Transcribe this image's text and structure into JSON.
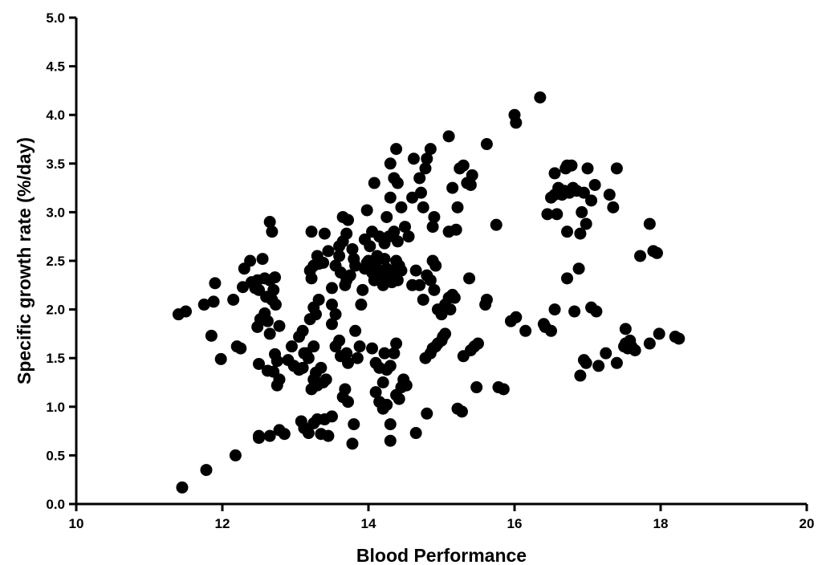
{
  "chart_data": {
    "type": "scatter",
    "title": "",
    "xlabel": "Blood Performance",
    "ylabel": "Specific growth rate (%/day)",
    "xlim": [
      10,
      20
    ],
    "ylim": [
      0,
      5
    ],
    "x_ticks": [
      "10",
      "12",
      "14",
      "16",
      "18",
      "20"
    ],
    "y_ticks": [
      "0.0",
      "0.5",
      "1.0",
      "1.5",
      "2.0",
      "2.5",
      "3.0",
      "3.5",
      "4.0",
      "4.5",
      "5.0"
    ],
    "grid": false,
    "marker_color": "#000000",
    "points": [
      [
        11.45,
        0.17
      ],
      [
        11.78,
        0.35
      ],
      [
        12.18,
        0.5
      ],
      [
        11.4,
        1.95
      ],
      [
        11.5,
        1.98
      ],
      [
        11.75,
        2.05
      ],
      [
        11.88,
        2.08
      ],
      [
        11.9,
        2.27
      ],
      [
        11.85,
        1.73
      ],
      [
        11.98,
        1.49
      ],
      [
        12.2,
        1.62
      ],
      [
        12.25,
        1.6
      ],
      [
        12.15,
        2.1
      ],
      [
        12.28,
        2.23
      ],
      [
        12.3,
        2.42
      ],
      [
        12.38,
        2.5
      ],
      [
        12.4,
        2.28
      ],
      [
        12.45,
        2.22
      ],
      [
        12.48,
        2.3
      ],
      [
        12.5,
        2.2
      ],
      [
        12.55,
        2.52
      ],
      [
        12.58,
        2.32
      ],
      [
        12.6,
        2.13
      ],
      [
        12.65,
        2.3
      ],
      [
        12.68,
        2.1
      ],
      [
        12.7,
        2.2
      ],
      [
        12.73,
        2.05
      ],
      [
        12.72,
        2.33
      ],
      [
        12.48,
        1.82
      ],
      [
        12.52,
        1.9
      ],
      [
        12.58,
        1.96
      ],
      [
        12.62,
        1.88
      ],
      [
        12.65,
        1.75
      ],
      [
        12.78,
        1.83
      ],
      [
        12.5,
        1.44
      ],
      [
        12.62,
        1.37
      ],
      [
        12.7,
        1.36
      ],
      [
        12.75,
        1.47
      ],
      [
        12.72,
        1.54
      ],
      [
        12.78,
        1.28
      ],
      [
        12.75,
        1.22
      ],
      [
        12.65,
        2.9
      ],
      [
        12.68,
        2.8
      ],
      [
        12.5,
        0.68
      ],
      [
        12.5,
        0.7
      ],
      [
        12.65,
        0.7
      ],
      [
        12.78,
        0.76
      ],
      [
        12.85,
        0.72
      ],
      [
        12.95,
        1.62
      ],
      [
        12.9,
        1.48
      ],
      [
        12.98,
        1.42
      ],
      [
        13.05,
        1.38
      ],
      [
        13.1,
        1.4
      ],
      [
        13.12,
        1.55
      ],
      [
        13.15,
        1.55
      ],
      [
        13.05,
        1.72
      ],
      [
        13.1,
        1.78
      ],
      [
        13.08,
        0.85
      ],
      [
        13.12,
        0.78
      ],
      [
        13.18,
        0.73
      ],
      [
        13.25,
        0.83
      ],
      [
        13.3,
        0.87
      ],
      [
        13.35,
        0.72
      ],
      [
        13.4,
        0.87
      ],
      [
        13.45,
        0.7
      ],
      [
        13.5,
        0.9
      ],
      [
        13.22,
        1.18
      ],
      [
        13.25,
        1.28
      ],
      [
        13.28,
        1.35
      ],
      [
        13.3,
        1.22
      ],
      [
        13.35,
        1.4
      ],
      [
        13.38,
        1.25
      ],
      [
        13.42,
        1.28
      ],
      [
        13.18,
        1.5
      ],
      [
        13.25,
        1.62
      ],
      [
        13.2,
        1.9
      ],
      [
        13.28,
        1.95
      ],
      [
        13.25,
        2.02
      ],
      [
        13.32,
        2.1
      ],
      [
        13.2,
        2.4
      ],
      [
        13.25,
        2.45
      ],
      [
        13.32,
        2.47
      ],
      [
        13.3,
        2.55
      ],
      [
        13.38,
        2.48
      ],
      [
        13.22,
        2.32
      ],
      [
        13.22,
        2.8
      ],
      [
        13.4,
        2.78
      ],
      [
        13.45,
        2.6
      ],
      [
        13.5,
        2.22
      ],
      [
        13.5,
        2.05
      ],
      [
        13.55,
        1.95
      ],
      [
        13.5,
        1.85
      ],
      [
        13.55,
        1.62
      ],
      [
        13.6,
        1.68
      ],
      [
        13.62,
        1.52
      ],
      [
        13.7,
        1.55
      ],
      [
        13.72,
        1.45
      ],
      [
        13.68,
        1.18
      ],
      [
        13.65,
        1.1
      ],
      [
        13.72,
        1.05
      ],
      [
        13.55,
        2.45
      ],
      [
        13.6,
        2.55
      ],
      [
        13.62,
        2.38
      ],
      [
        13.65,
        2.7
      ],
      [
        13.7,
        2.78
      ],
      [
        13.72,
        2.92
      ],
      [
        13.78,
        2.62
      ],
      [
        13.8,
        2.52
      ],
      [
        13.82,
        2.45
      ],
      [
        13.75,
        2.35
      ],
      [
        13.68,
        2.25
      ],
      [
        13.65,
        2.95
      ],
      [
        13.6,
        2.65
      ],
      [
        13.7,
        2.3
      ],
      [
        13.78,
        0.62
      ],
      [
        13.8,
        0.82
      ],
      [
        13.85,
        1.5
      ],
      [
        13.88,
        1.62
      ],
      [
        13.82,
        1.78
      ],
      [
        13.9,
        2.05
      ],
      [
        13.92,
        2.2
      ],
      [
        13.95,
        2.42
      ],
      [
        13.98,
        2.48
      ],
      [
        14.0,
        2.5
      ],
      [
        14.02,
        2.65
      ],
      [
        14.05,
        2.38
      ],
      [
        14.08,
        2.3
      ],
      [
        14.1,
        2.45
      ],
      [
        14.12,
        2.55
      ],
      [
        14.15,
        2.4
      ],
      [
        14.18,
        2.35
      ],
      [
        14.2,
        2.25
      ],
      [
        14.22,
        2.52
      ],
      [
        14.25,
        2.42
      ],
      [
        14.28,
        2.32
      ],
      [
        14.3,
        2.4
      ],
      [
        14.32,
        2.28
      ],
      [
        14.35,
        2.38
      ],
      [
        14.38,
        2.5
      ],
      [
        14.4,
        2.3
      ],
      [
        14.42,
        2.45
      ],
      [
        14.45,
        2.4
      ],
      [
        13.95,
        2.72
      ],
      [
        14.05,
        2.8
      ],
      [
        14.15,
        2.75
      ],
      [
        14.22,
        2.68
      ],
      [
        14.28,
        2.75
      ],
      [
        14.35,
        2.8
      ],
      [
        14.4,
        2.7
      ],
      [
        13.98,
        3.02
      ],
      [
        14.08,
        3.3
      ],
      [
        14.25,
        2.95
      ],
      [
        14.3,
        3.15
      ],
      [
        14.35,
        3.35
      ],
      [
        14.4,
        3.3
      ],
      [
        14.3,
        3.5
      ],
      [
        14.38,
        3.65
      ],
      [
        14.45,
        3.05
      ],
      [
        14.5,
        2.85
      ],
      [
        14.55,
        2.75
      ],
      [
        14.6,
        3.15
      ],
      [
        14.62,
        3.55
      ],
      [
        14.7,
        3.35
      ],
      [
        14.72,
        3.2
      ],
      [
        14.75,
        3.05
      ],
      [
        14.78,
        3.45
      ],
      [
        14.8,
        3.55
      ],
      [
        14.85,
        3.65
      ],
      [
        14.88,
        2.85
      ],
      [
        14.9,
        2.95
      ],
      [
        14.6,
        2.25
      ],
      [
        14.65,
        2.4
      ],
      [
        14.7,
        2.25
      ],
      [
        14.75,
        2.1
      ],
      [
        14.8,
        2.35
      ],
      [
        14.85,
        2.3
      ],
      [
        14.88,
        2.5
      ],
      [
        14.9,
        2.2
      ],
      [
        14.92,
        2.45
      ],
      [
        14.95,
        2.0
      ],
      [
        14.05,
        1.6
      ],
      [
        14.1,
        1.45
      ],
      [
        14.15,
        1.4
      ],
      [
        14.2,
        1.25
      ],
      [
        14.22,
        1.55
      ],
      [
        14.25,
        1.38
      ],
      [
        14.3,
        1.42
      ],
      [
        14.35,
        1.55
      ],
      [
        14.38,
        1.65
      ],
      [
        14.1,
        1.15
      ],
      [
        14.15,
        1.05
      ],
      [
        14.2,
        0.98
      ],
      [
        14.25,
        1.02
      ],
      [
        14.38,
        1.12
      ],
      [
        14.42,
        1.08
      ],
      [
        14.45,
        1.2
      ],
      [
        14.48,
        1.28
      ],
      [
        14.52,
        1.22
      ],
      [
        14.3,
        0.65
      ],
      [
        14.3,
        0.82
      ],
      [
        14.65,
        0.73
      ],
      [
        14.8,
        0.93
      ],
      [
        14.78,
        1.5
      ],
      [
        14.85,
        1.55
      ],
      [
        14.88,
        1.6
      ],
      [
        14.92,
        1.62
      ],
      [
        14.95,
        1.65
      ],
      [
        15.0,
        1.68
      ],
      [
        15.02,
        1.72
      ],
      [
        15.05,
        1.75
      ],
      [
        15.0,
        1.95
      ],
      [
        15.05,
        2.05
      ],
      [
        15.1,
        2.12
      ],
      [
        15.12,
        2.0
      ],
      [
        15.15,
        2.15
      ],
      [
        15.18,
        2.12
      ],
      [
        15.1,
        2.8
      ],
      [
        15.2,
        2.82
      ],
      [
        15.15,
        3.25
      ],
      [
        15.22,
        3.05
      ],
      [
        15.25,
        3.45
      ],
      [
        15.3,
        3.48
      ],
      [
        15.35,
        3.3
      ],
      [
        15.4,
        3.28
      ],
      [
        15.42,
        3.38
      ],
      [
        15.1,
        3.78
      ],
      [
        15.22,
        0.98
      ],
      [
        15.28,
        0.95
      ],
      [
        15.3,
        1.52
      ],
      [
        15.4,
        1.58
      ],
      [
        15.45,
        1.62
      ],
      [
        15.5,
        1.65
      ],
      [
        15.48,
        1.2
      ],
      [
        15.38,
        2.32
      ],
      [
        15.6,
        2.05
      ],
      [
        15.62,
        2.1
      ],
      [
        15.62,
        3.7
      ],
      [
        15.75,
        2.87
      ],
      [
        15.78,
        1.2
      ],
      [
        15.85,
        1.18
      ],
      [
        15.95,
        1.88
      ],
      [
        16.02,
        1.92
      ],
      [
        16.0,
        4.0
      ],
      [
        16.02,
        3.92
      ],
      [
        16.15,
        1.78
      ],
      [
        16.35,
        4.18
      ],
      [
        16.4,
        1.85
      ],
      [
        16.42,
        1.82
      ],
      [
        16.5,
        1.78
      ],
      [
        16.55,
        2.0
      ],
      [
        16.45,
        2.98
      ],
      [
        16.5,
        3.15
      ],
      [
        16.55,
        3.18
      ],
      [
        16.58,
        2.98
      ],
      [
        16.55,
        3.4
      ],
      [
        16.6,
        3.25
      ],
      [
        16.65,
        3.18
      ],
      [
        16.68,
        3.22
      ],
      [
        16.7,
        3.45
      ],
      [
        16.72,
        3.48
      ],
      [
        16.75,
        3.2
      ],
      [
        16.78,
        3.48
      ],
      [
        16.8,
        3.25
      ],
      [
        16.85,
        3.22
      ],
      [
        16.88,
        2.42
      ],
      [
        16.92,
        3.0
      ],
      [
        16.95,
        3.2
      ],
      [
        16.98,
        2.88
      ],
      [
        17.0,
        3.45
      ],
      [
        16.9,
        2.78
      ],
      [
        16.72,
        2.8
      ],
      [
        16.72,
        2.32
      ],
      [
        16.82,
        1.98
      ],
      [
        17.05,
        2.02
      ],
      [
        17.12,
        1.98
      ],
      [
        17.05,
        3.12
      ],
      [
        17.1,
        3.28
      ],
      [
        17.3,
        3.18
      ],
      [
        17.35,
        3.05
      ],
      [
        17.4,
        3.45
      ],
      [
        16.9,
        1.32
      ],
      [
        16.95,
        1.48
      ],
      [
        16.98,
        1.45
      ],
      [
        17.15,
        1.42
      ],
      [
        17.25,
        1.55
      ],
      [
        17.4,
        1.45
      ],
      [
        17.5,
        1.62
      ],
      [
        17.52,
        1.65
      ],
      [
        17.55,
        1.6
      ],
      [
        17.58,
        1.68
      ],
      [
        17.52,
        1.8
      ],
      [
        17.6,
        1.62
      ],
      [
        17.65,
        1.58
      ],
      [
        17.72,
        2.55
      ],
      [
        17.85,
        2.88
      ],
      [
        17.9,
        2.6
      ],
      [
        17.95,
        2.58
      ],
      [
        17.85,
        1.65
      ],
      [
        17.98,
        1.75
      ],
      [
        18.2,
        1.72
      ],
      [
        18.25,
        1.7
      ]
    ]
  }
}
